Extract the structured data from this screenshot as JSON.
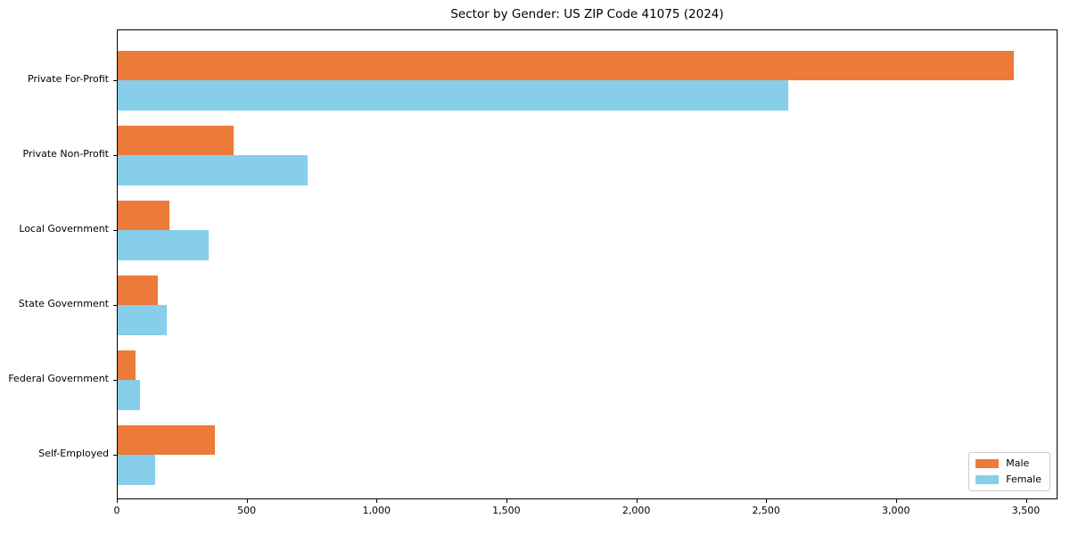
{
  "chart_data": {
    "type": "bar",
    "orientation": "horizontal",
    "title": "Sector by Gender: US ZIP Code 41075 (2024)",
    "categories": [
      "Private For-Profit",
      "Private Non-Profit",
      "Local Government",
      "State Government",
      "Federal Government",
      "Self-Employed"
    ],
    "series": [
      {
        "name": "Male",
        "color": "#ec7a38",
        "values": [
          3450,
          445,
          200,
          155,
          70,
          375
        ]
      },
      {
        "name": "Female",
        "color": "#87ceeb",
        "values": [
          2580,
          730,
          350,
          190,
          85,
          145
        ]
      }
    ],
    "xlim": [
      0,
      3622
    ],
    "x_ticks": [
      0,
      500,
      1000,
      1500,
      2000,
      2500,
      3000,
      3500
    ],
    "x_tick_labels": [
      "0",
      "500",
      "1,000",
      "1,500",
      "2,000",
      "2,500",
      "3,000",
      "3,500"
    ],
    "xlabel": "",
    "ylabel": "",
    "grid": false,
    "legend_position": "lower right"
  }
}
